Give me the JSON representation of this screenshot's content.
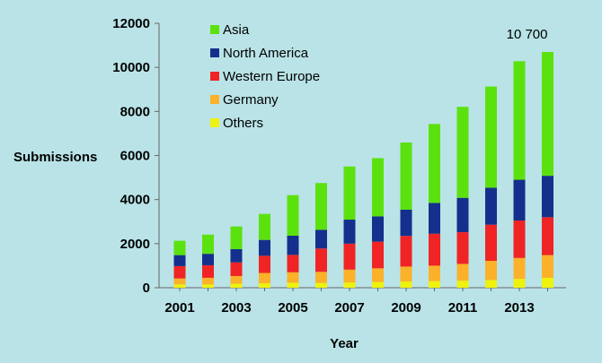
{
  "chart_data": {
    "type": "bar",
    "stacked": true,
    "title": "",
    "xlabel": "Year",
    "ylabel": "Submissions",
    "ylim": [
      0,
      12000
    ],
    "y_ticks": [
      "0",
      "2000",
      "4000",
      "6000",
      "8000",
      "10000",
      "12000"
    ],
    "x_tick_labels": [
      "2001",
      "2003",
      "2005",
      "2007",
      "2009",
      "2011",
      "2013"
    ],
    "categories": [
      "2001",
      "2002",
      "2003",
      "2004",
      "2005",
      "2006",
      "2007",
      "2008",
      "2009",
      "2010",
      "2011",
      "2012",
      "2013",
      "2014"
    ],
    "series": [
      {
        "name": "Others",
        "color": "#eef20c",
        "values": [
          150,
          150,
          180,
          200,
          230,
          220,
          240,
          260,
          280,
          300,
          320,
          350,
          400,
          450
        ]
      },
      {
        "name": "Germany",
        "color": "#fbb12a",
        "values": [
          270,
          300,
          350,
          470,
          470,
          500,
          580,
          620,
          680,
          700,
          760,
          870,
          950,
          1030
        ]
      },
      {
        "name": "Western Europe",
        "color": "#f02424",
        "values": [
          560,
          570,
          620,
          780,
          790,
          1060,
          1180,
          1210,
          1390,
          1450,
          1440,
          1640,
          1700,
          1720
        ]
      },
      {
        "name": "North America",
        "color": "#14308c",
        "values": [
          500,
          520,
          600,
          720,
          870,
          850,
          1090,
          1150,
          1190,
          1400,
          1560,
          1680,
          1850,
          1880
        ]
      },
      {
        "name": "Asia",
        "color": "#5be20e",
        "values": [
          650,
          870,
          1030,
          1180,
          1840,
          2120,
          2410,
          2640,
          3050,
          3580,
          4130,
          4590,
          5380,
          5620
        ]
      }
    ],
    "legend_order": [
      "Asia",
      "North America",
      "Western Europe",
      "Germany",
      "Others"
    ],
    "legend_position": "top-left",
    "annotations": [
      {
        "category": "2014",
        "text": "10 700"
      }
    ]
  }
}
